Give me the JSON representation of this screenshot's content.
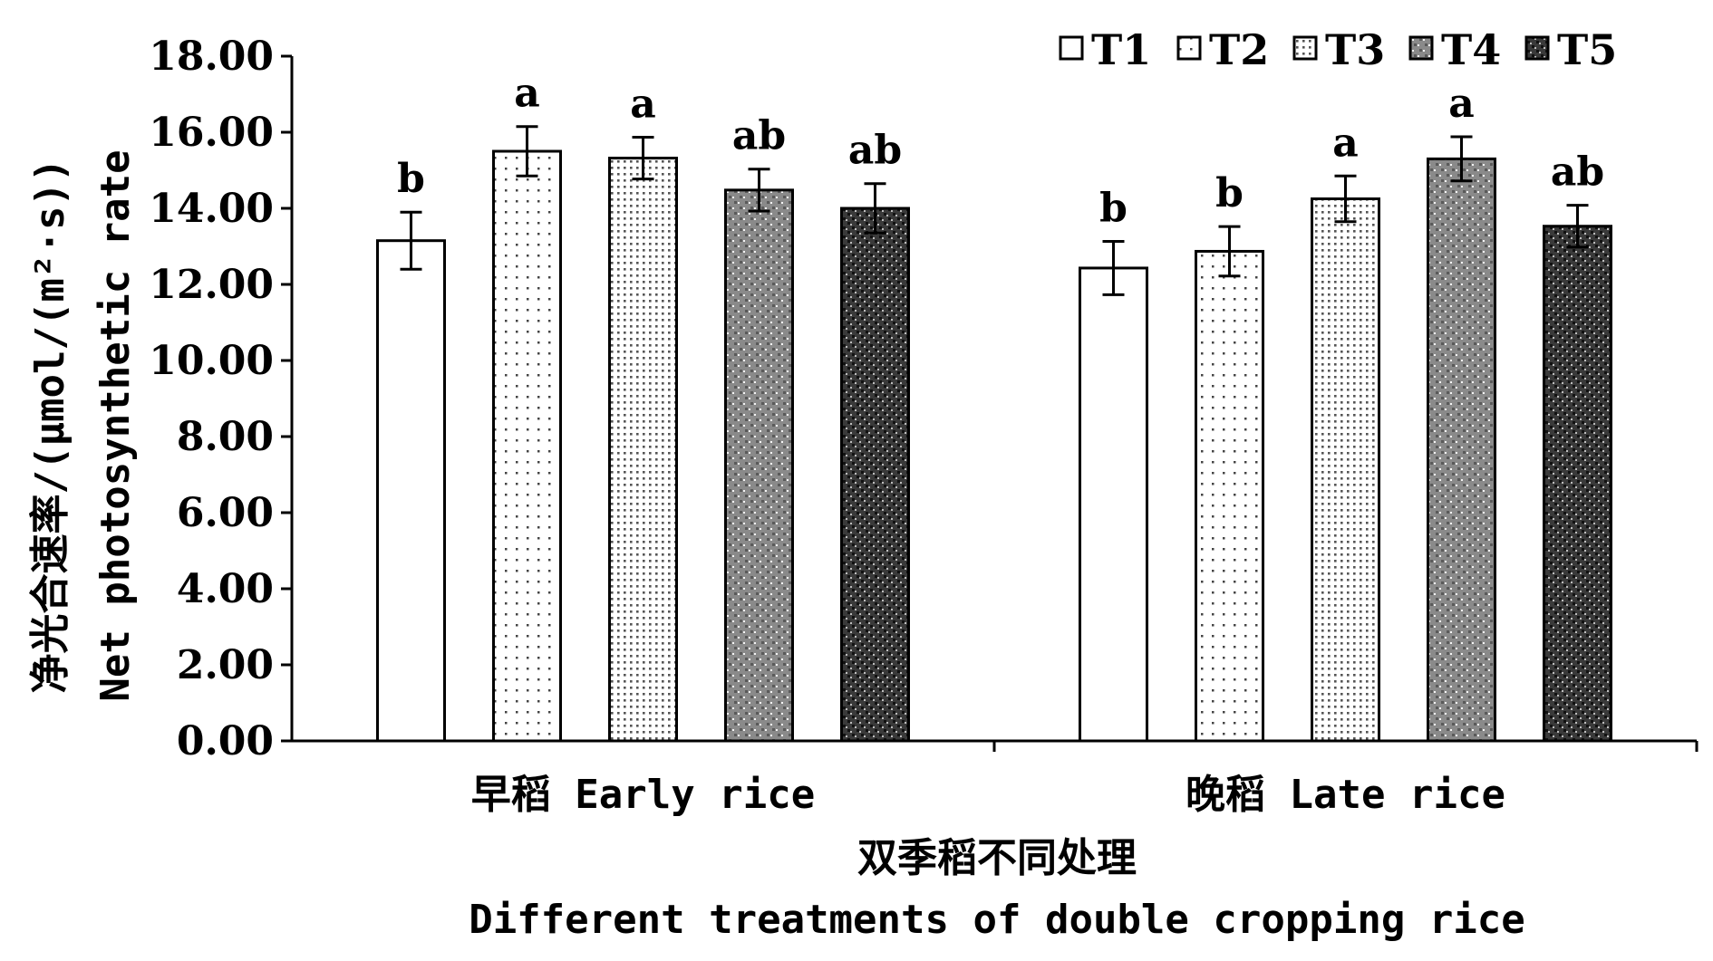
{
  "chart_data": {
    "type": "bar",
    "categories": [
      "早稻 Early rice",
      "晚稻 Late rice"
    ],
    "series": [
      {
        "name": "T1",
        "values": [
          13.15,
          12.43
        ],
        "errors": [
          0.75,
          0.7
        ],
        "labels": [
          "b",
          "b"
        ],
        "pattern": "none"
      },
      {
        "name": "T2",
        "values": [
          15.5,
          12.87
        ],
        "errors": [
          0.65,
          0.65
        ],
        "labels": [
          "a",
          "b"
        ],
        "pattern": "sparse-dots"
      },
      {
        "name": "T3",
        "values": [
          15.32,
          14.25
        ],
        "errors": [
          0.55,
          0.6
        ],
        "labels": [
          "a",
          "a"
        ],
        "pattern": "dense-dots"
      },
      {
        "name": "T4",
        "values": [
          14.48,
          15.3
        ],
        "errors": [
          0.55,
          0.58
        ],
        "labels": [
          "ab",
          "a"
        ],
        "pattern": "gray-dots"
      },
      {
        "name": "T5",
        "values": [
          14.0,
          13.53
        ],
        "errors": [
          0.65,
          0.55
        ],
        "labels": [
          "ab",
          "ab"
        ],
        "pattern": "dark-dots"
      }
    ],
    "ylim": [
      0,
      18
    ],
    "yticks": [
      "0.00",
      "2.00",
      "4.00",
      "6.00",
      "8.00",
      "10.00",
      "12.00",
      "14.00",
      "16.00",
      "18.00"
    ],
    "ylabel_cn": "净光合速率/(μmol/(m²·s))",
    "ylabel_en": "Net photosynthetic rate",
    "xlabel_cn": "双季稻不同处理",
    "xlabel_en": "Different treatments of double cropping rice",
    "legend_position": "top-right",
    "grid": false
  }
}
